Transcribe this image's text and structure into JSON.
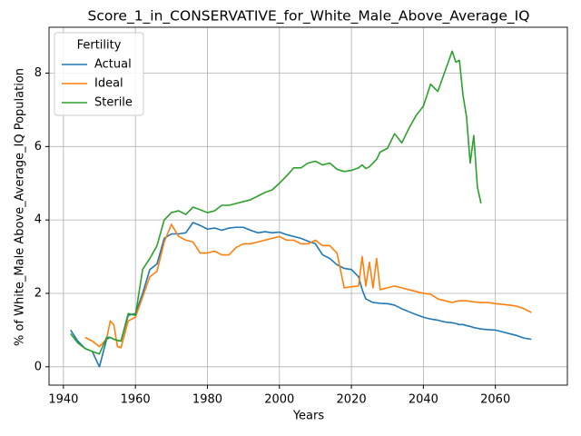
{
  "chart_data": {
    "type": "line",
    "title": "Score_1_in_CONSERVATIVE_for_White_Male_Above_Average_IQ",
    "x_label": "Years",
    "y_label": "% of White_Male Above_Average_IQ Population",
    "legend_title": "Fertility",
    "legend": "upper left",
    "grid": true,
    "x": [
      1942,
      1944,
      1946,
      1948,
      1950,
      1952,
      1953,
      1954,
      1955,
      1956,
      1958,
      1960,
      1962,
      1964,
      1966,
      1968,
      1970,
      1972,
      1974,
      1976,
      1978,
      1980,
      1982,
      1984,
      1986,
      1988,
      1990,
      1992,
      1994,
      1996,
      1998,
      2000,
      2002,
      2004,
      2006,
      2008,
      2010,
      2012,
      2014,
      2016,
      2018,
      2020,
      2022,
      2023,
      2024,
      2025,
      2026,
      2027,
      2028,
      2030,
      2032,
      2034,
      2036,
      2038,
      2040,
      2042,
      2044,
      2046,
      2048,
      2049,
      2050,
      2051,
      2052,
      2053,
      2054,
      2055,
      2056,
      2058,
      2060,
      2062,
      2064,
      2066,
      2068,
      2070
    ],
    "series": [
      {
        "name": "Actual",
        "color": "#1f77b4",
        "values": [
          1.0,
          0.7,
          0.5,
          0.42,
          0.0,
          0.75,
          0.8,
          0.75,
          0.72,
          0.7,
          1.4,
          1.45,
          2.0,
          2.65,
          2.8,
          3.5,
          3.62,
          3.62,
          3.65,
          3.93,
          3.85,
          3.75,
          3.78,
          3.72,
          3.78,
          3.8,
          3.8,
          3.72,
          3.65,
          3.68,
          3.65,
          3.67,
          3.6,
          3.55,
          3.5,
          3.42,
          3.35,
          3.05,
          2.95,
          2.78,
          2.68,
          2.65,
          2.45,
          2.1,
          1.85,
          1.8,
          1.75,
          1.74,
          1.73,
          1.72,
          1.68,
          1.58,
          1.5,
          1.42,
          1.35,
          1.3,
          1.27,
          1.22,
          1.2,
          1.18,
          1.15,
          1.15,
          1.12,
          1.1,
          1.07,
          1.05,
          1.03,
          1.01,
          1.0,
          0.95,
          0.9,
          0.85,
          0.78,
          0.75
        ]
      },
      {
        "name": "Ideal",
        "color": "#ff7f0e",
        "values": [
          null,
          null,
          0.8,
          0.7,
          0.55,
          0.75,
          1.25,
          1.15,
          0.55,
          0.52,
          1.25,
          1.35,
          1.9,
          2.45,
          2.6,
          3.4,
          3.88,
          3.55,
          3.45,
          3.4,
          3.1,
          3.1,
          3.15,
          3.05,
          3.05,
          3.25,
          3.35,
          3.35,
          3.4,
          3.45,
          3.5,
          3.55,
          3.45,
          3.45,
          3.35,
          3.35,
          3.45,
          3.3,
          3.3,
          3.1,
          2.15,
          2.18,
          2.2,
          3.0,
          2.2,
          2.85,
          2.15,
          2.95,
          2.1,
          2.15,
          2.2,
          2.15,
          2.1,
          2.05,
          2.0,
          1.98,
          1.85,
          1.8,
          1.75,
          1.78,
          1.8,
          1.8,
          1.8,
          1.78,
          1.77,
          1.76,
          1.75,
          1.75,
          1.72,
          1.7,
          1.68,
          1.65,
          1.58,
          1.48
        ]
      },
      {
        "name": "Sterile",
        "color": "#2ca02c",
        "values": [
          0.9,
          0.65,
          0.5,
          0.42,
          0.35,
          0.8,
          0.8,
          0.75,
          0.72,
          0.7,
          1.45,
          1.4,
          2.65,
          2.95,
          3.3,
          4.0,
          4.2,
          4.25,
          4.15,
          4.35,
          4.28,
          4.2,
          4.25,
          4.4,
          4.4,
          4.45,
          4.5,
          4.55,
          4.65,
          4.75,
          4.82,
          5.0,
          5.2,
          5.42,
          5.42,
          5.55,
          5.6,
          5.5,
          5.55,
          5.38,
          5.32,
          5.35,
          5.42,
          5.5,
          5.4,
          5.45,
          5.55,
          5.65,
          5.85,
          5.95,
          6.35,
          6.1,
          6.5,
          6.85,
          7.1,
          7.7,
          7.5,
          8.05,
          8.6,
          8.3,
          8.35,
          7.4,
          6.8,
          5.55,
          6.3,
          4.9,
          4.45,
          null,
          null,
          null,
          null,
          null,
          null,
          null
        ]
      }
    ],
    "xlim": [
      1936,
      2080
    ],
    "xticks": [
      1940,
      1960,
      1980,
      2000,
      2020,
      2040,
      2060
    ],
    "ylim": [
      -0.5,
      9.25
    ],
    "yticks": [
      0,
      2,
      4,
      6,
      8
    ]
  }
}
